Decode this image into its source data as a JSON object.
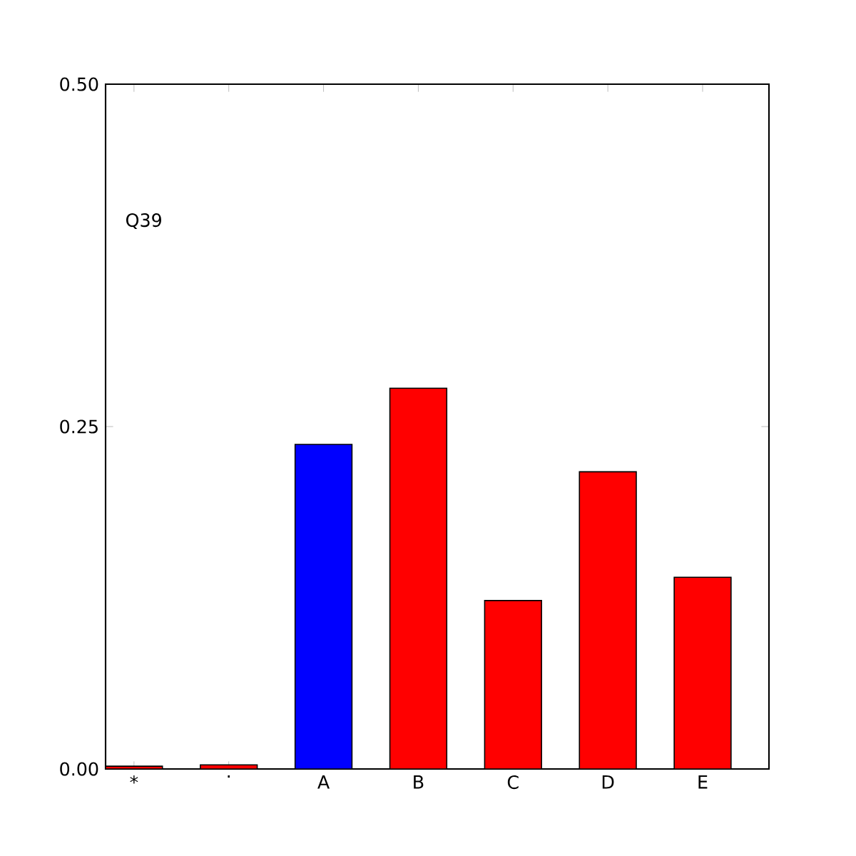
{
  "chart_data": {
    "type": "bar",
    "categories": [
      "*",
      ".",
      "A",
      "B",
      "C",
      "D",
      "E"
    ],
    "values": [
      0.002,
      0.003,
      0.237,
      0.278,
      0.123,
      0.217,
      0.14
    ],
    "colors": [
      "#ff0000",
      "#ff0000",
      "#0000ff",
      "#ff0000",
      "#ff0000",
      "#ff0000",
      "#ff0000"
    ],
    "ylim": [
      0,
      0.5
    ],
    "yticks": [
      {
        "value": 0,
        "label": "0.00"
      },
      {
        "value": 0.25,
        "label": "0.25"
      },
      {
        "value": 0.5,
        "label": "0.50"
      }
    ],
    "annotations": [
      "Q39"
    ],
    "grid": false
  }
}
